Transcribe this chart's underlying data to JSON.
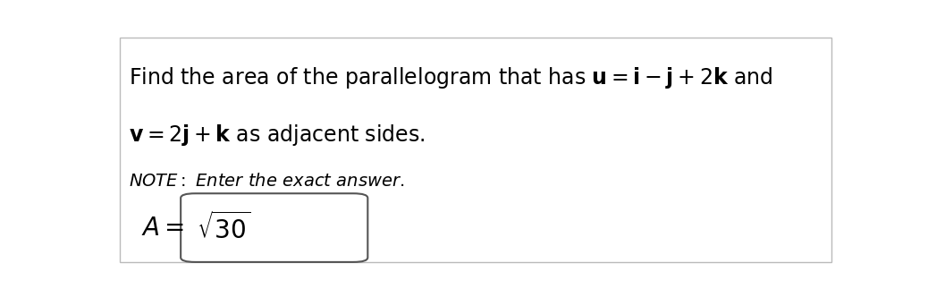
{
  "line1": "Find the area of the parallelogram that has $\\mathbf{u} = \\mathbf{i} - \\mathbf{j} + 2\\mathbf{k}$ and",
  "line2": "$\\mathbf{v} = 2\\mathbf{j} + \\mathbf{k}$ as adjacent sides.",
  "note": "$\\it{NOTE: Enter\\ the\\ exact\\ answer.}$",
  "answer_label": "$A =$",
  "answer_value": "$\\sqrt{30}$",
  "bg_color": "#ffffff",
  "border_color": "#555555",
  "text_color": "#000000",
  "fig_width": 10.38,
  "fig_height": 3.32,
  "dpi": 100,
  "text_fontsize": 17,
  "note_fontsize": 14,
  "answer_fontsize": 20,
  "label_fontsize": 20
}
